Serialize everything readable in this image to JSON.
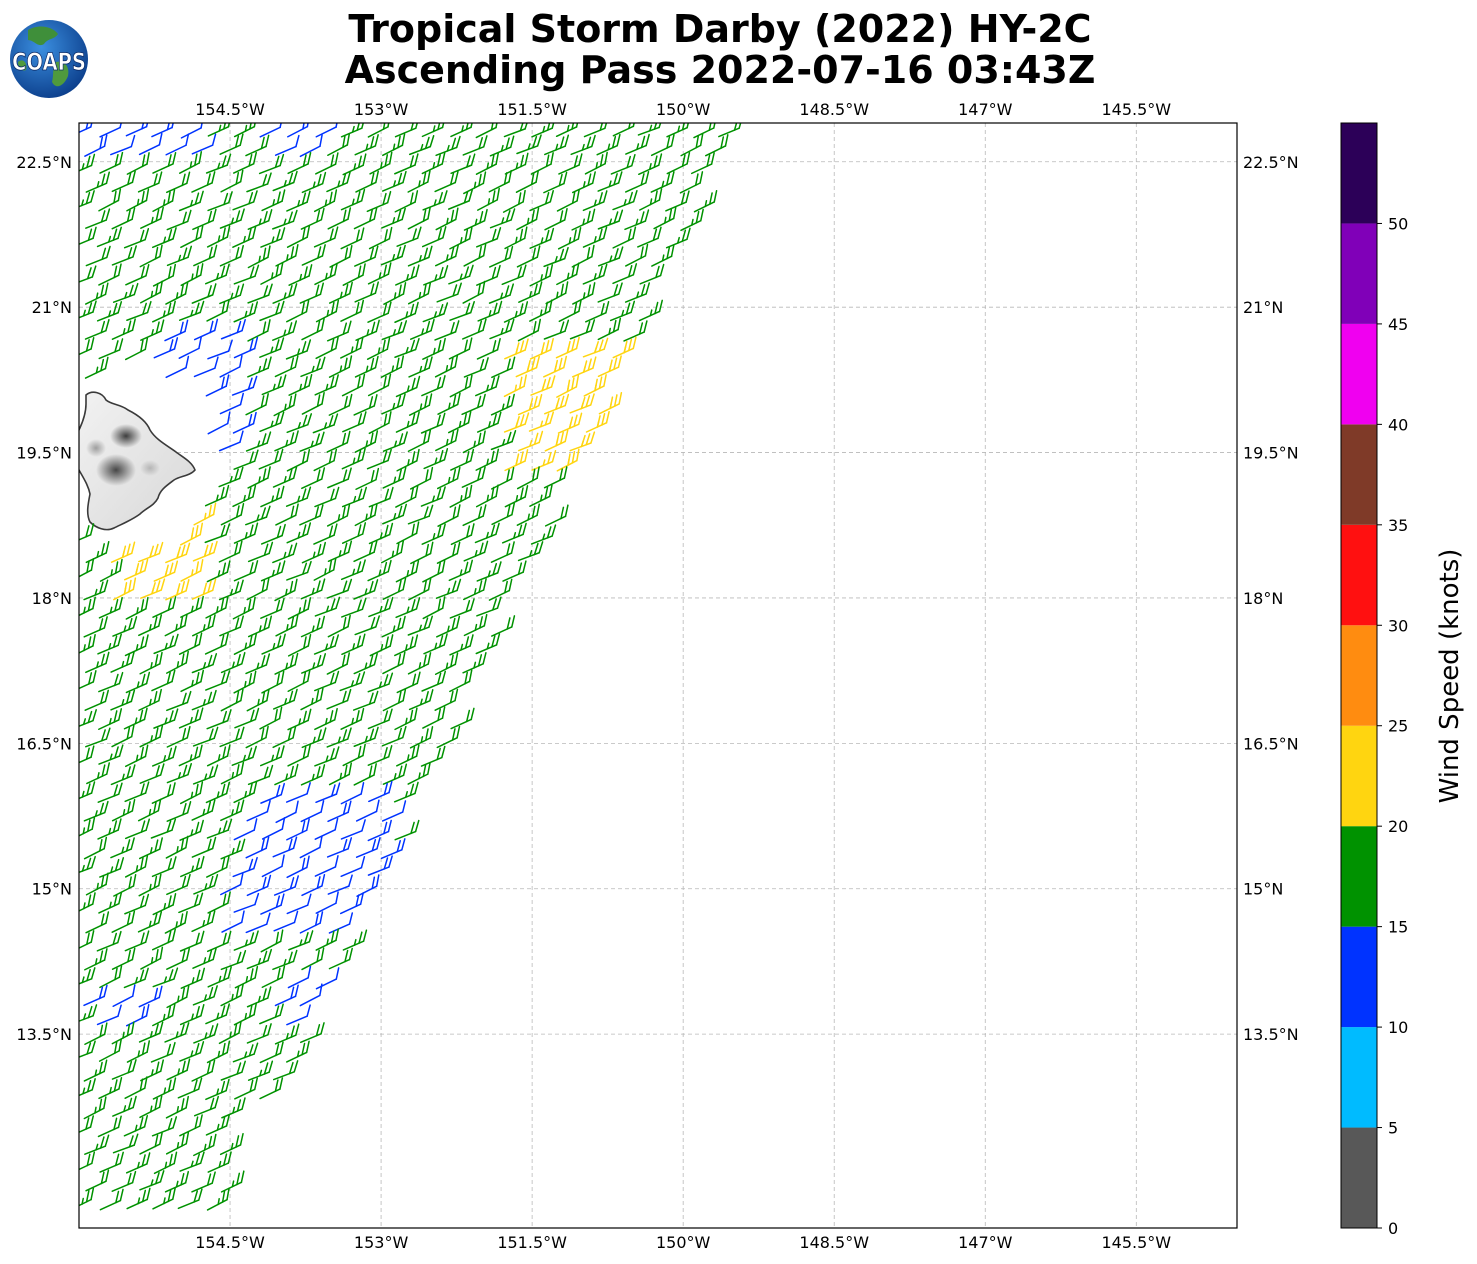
{
  "title": {
    "line1": "Tropical Storm Darby (2022) HY-2C",
    "line2": "Ascending Pass 2022-07-16 03:43Z"
  },
  "logo": {
    "text": "COAPS",
    "icon": "globe-icon"
  },
  "map": {
    "lon_range": [
      -156,
      -144.5
    ],
    "lat_range": [
      11.5,
      22.9
    ],
    "lon_ticks": [
      -154.5,
      -153,
      -151.5,
      -150,
      -148.5,
      -147,
      -145.5
    ],
    "lon_labels": [
      "154.5°W",
      "153°W",
      "151.5°W",
      "150°W",
      "148.5°W",
      "147°W",
      "145.5°W"
    ],
    "lat_ticks": [
      22.5,
      21,
      19.5,
      18,
      16.5,
      15,
      13.5
    ],
    "lat_labels": [
      "22.5°N",
      "21°N",
      "19.5°N",
      "18°N",
      "16.5°N",
      "15°N",
      "13.5°N"
    ],
    "grid": true,
    "land": "Island of Hawaii",
    "wind_barbs": "swath of wind barbs, mostly 15-20 kt (green), patches 10-15 kt (blue) and 20-25 kt (yellow)"
  },
  "colorbar": {
    "label": "Wind Speed (knots)",
    "ticks": [
      "0",
      "5",
      "10",
      "15",
      "20",
      "25",
      "30",
      "35",
      "40",
      "45",
      "50"
    ],
    "bins": [
      {
        "range": [
          0,
          5
        ],
        "color": "#585858"
      },
      {
        "range": [
          5,
          10
        ],
        "color": "#00bbff"
      },
      {
        "range": [
          10,
          15
        ],
        "color": "#0033ff"
      },
      {
        "range": [
          15,
          20
        ],
        "color": "#009200"
      },
      {
        "range": [
          20,
          25
        ],
        "color": "#ffd510"
      },
      {
        "range": [
          25,
          30
        ],
        "color": "#ff8c10"
      },
      {
        "range": [
          30,
          35
        ],
        "color": "#ff1010"
      },
      {
        "range": [
          35,
          40
        ],
        "color": "#7f3a28"
      },
      {
        "range": [
          40,
          45
        ],
        "color": "#f000f0"
      },
      {
        "range": [
          45,
          50
        ],
        "color": "#8000b8"
      },
      {
        "range": [
          50,
          55
        ],
        "color": "#2c0058"
      }
    ]
  }
}
